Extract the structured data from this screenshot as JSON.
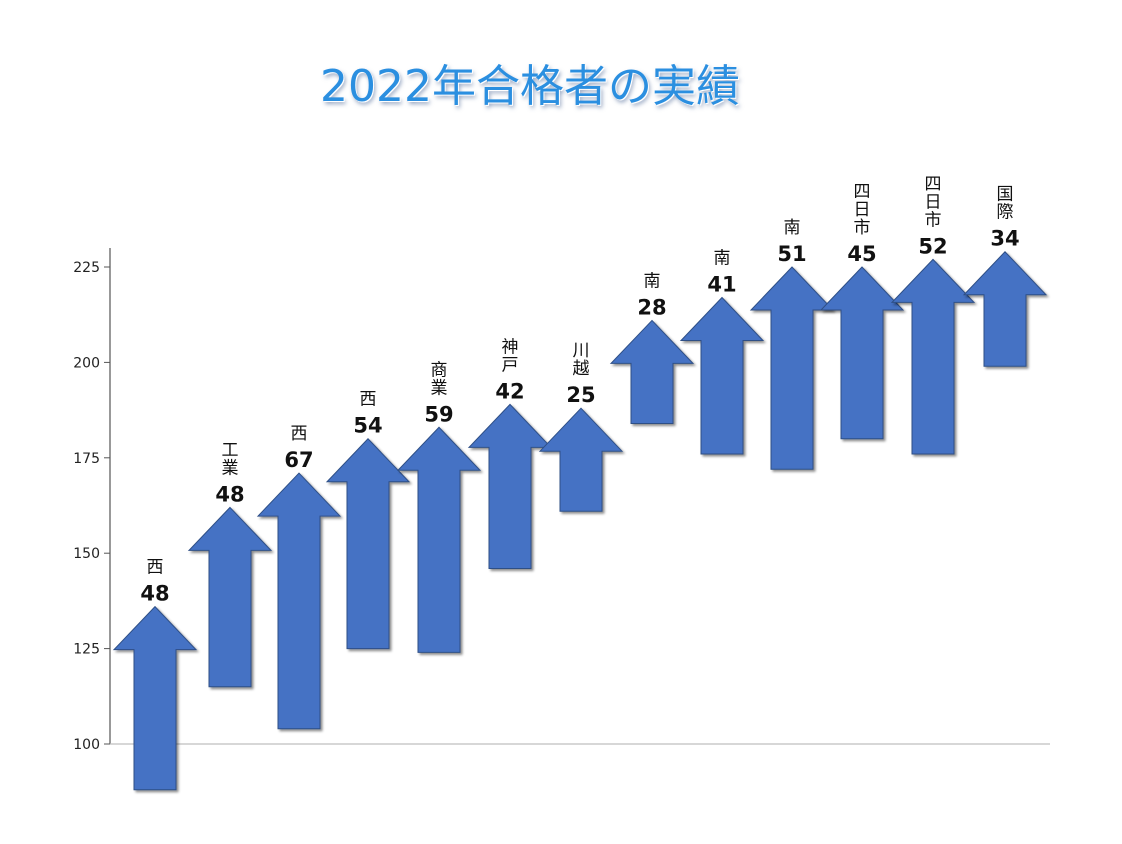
{
  "chart_data": {
    "type": "bar",
    "title": "2022年合格者の実績",
    "ylim": [
      100,
      230
    ],
    "yticks": [
      100,
      125,
      150,
      175,
      200,
      225
    ],
    "grid": false,
    "legend": "none",
    "series_color": "#4472c4",
    "bars": [
      {
        "label": "西",
        "value": 48,
        "low": 88,
        "high": 136
      },
      {
        "label": "工業",
        "value": 48,
        "low": 115,
        "high": 162
      },
      {
        "label": "西",
        "value": 67,
        "low": 104,
        "high": 171
      },
      {
        "label": "西",
        "value": 54,
        "low": 125,
        "high": 180
      },
      {
        "label": "商業",
        "value": 59,
        "low": 124,
        "high": 183
      },
      {
        "label": "神戸",
        "value": 42,
        "low": 146,
        "high": 189
      },
      {
        "label": "川越",
        "value": 25,
        "low": 161,
        "high": 188
      },
      {
        "label": "南",
        "value": 28,
        "low": 184,
        "high": 211
      },
      {
        "label": "南",
        "value": 41,
        "low": 176,
        "high": 217
      },
      {
        "label": "南",
        "value": 51,
        "low": 172,
        "high": 225
      },
      {
        "label": "四日市",
        "value": 45,
        "low": 180,
        "high": 225
      },
      {
        "label": "四日市",
        "value": 52,
        "low": 176,
        "high": 227
      },
      {
        "label": "国際",
        "value": 34,
        "low": 199,
        "high": 229
      }
    ]
  }
}
